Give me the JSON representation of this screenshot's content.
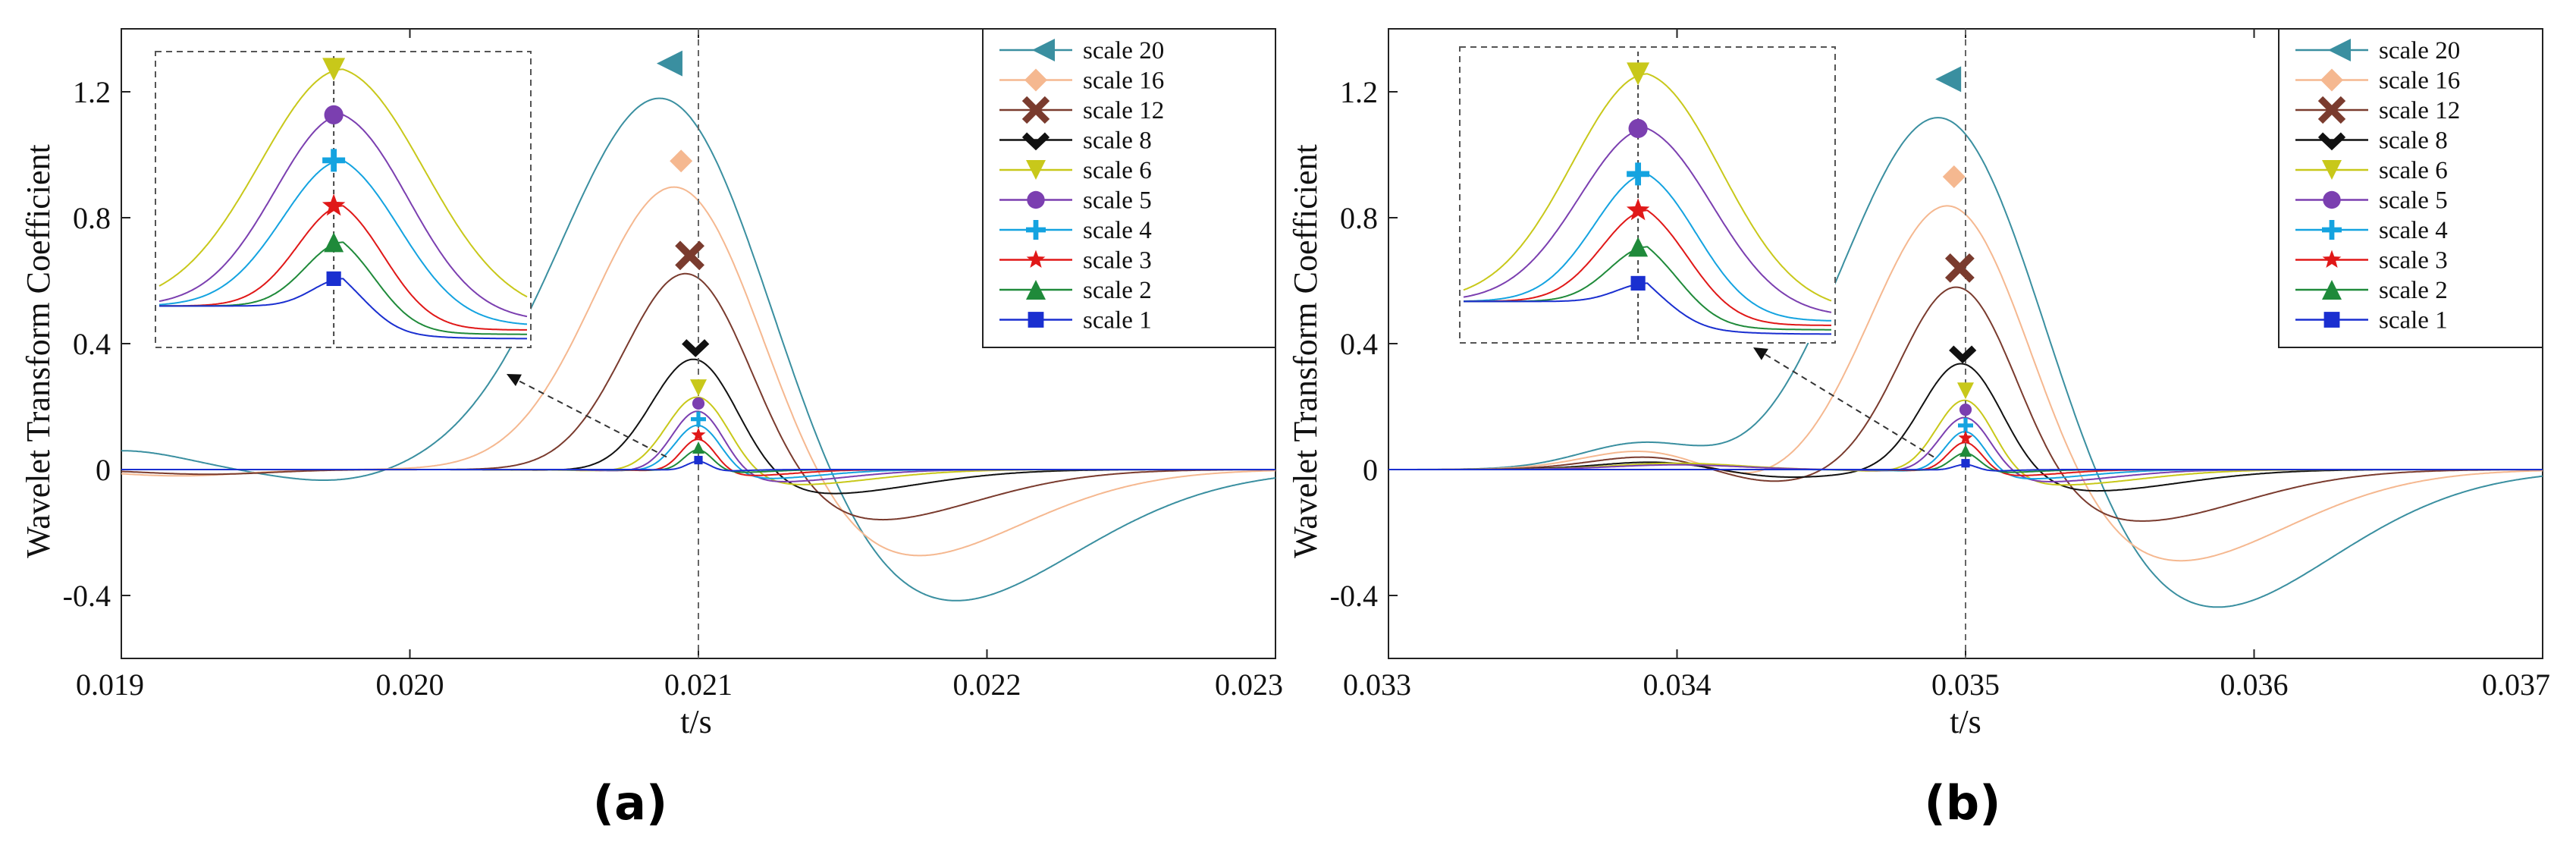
{
  "chart_data": [
    {
      "type": "line",
      "panel_label": "(a)",
      "xlabel": "t/s",
      "ylabel": "Wavelet Transform Coefficient",
      "xlim": [
        0.019,
        0.023
      ],
      "ylim": [
        -0.6,
        1.4
      ],
      "xticks": [
        0.019,
        0.02,
        0.021,
        0.022,
        0.023
      ],
      "xtick_labels": [
        "0.019",
        "0.020",
        "0.021",
        "0.022",
        "0.023"
      ],
      "yticks": [
        -0.4,
        0,
        0.4,
        0.8,
        1.2
      ],
      "ytick_labels": [
        "-0.4",
        "0",
        "0.4",
        "0.8",
        "1.2"
      ],
      "marker_line_x": 0.021,
      "legend_position": "top-right",
      "series": [
        {
          "name": "scale 20",
          "color": "#3a8fa0",
          "marker": "triangle-left",
          "peak_x": 0.0209,
          "peak_y": 1.29,
          "width": 0.00036,
          "neg_x": 0.02176,
          "neg_y": -0.46,
          "neg_width": 0.00052,
          "pre": [
            [
              0.019,
              0.06
            ],
            [
              0.01975,
              -0.04
            ]
          ]
        },
        {
          "name": "scale 16",
          "color": "#f5b890",
          "marker": "diamond",
          "peak_x": 0.02094,
          "peak_y": 0.98,
          "width": 0.00029,
          "neg_x": 0.02165,
          "neg_y": -0.3,
          "neg_width": 0.00045,
          "pre": [
            [
              0.0192,
              -0.02
            ]
          ]
        },
        {
          "name": "scale 12",
          "color": "#7a3b2e",
          "marker": "x",
          "peak_x": 0.02097,
          "peak_y": 0.68,
          "width": 0.00022,
          "neg_x": 0.02155,
          "neg_y": -0.17,
          "neg_width": 0.0004,
          "pre": [
            [
              0.0193,
              -0.015
            ]
          ]
        },
        {
          "name": "scale 8",
          "color": "#111111",
          "marker": "check",
          "peak_x": 0.02099,
          "peak_y": 0.39,
          "width": 0.00015,
          "neg_x": 0.0214,
          "neg_y": -0.08,
          "neg_width": 0.00035,
          "pre": []
        },
        {
          "name": "scale 6",
          "color": "#c8c81a",
          "marker": "triangle-down",
          "peak_x": 0.021,
          "peak_y": 0.26,
          "width": 0.00011,
          "neg_x": 0.0213,
          "neg_y": -0.05,
          "neg_width": 0.0003,
          "pre": []
        },
        {
          "name": "scale 5",
          "color": "#7b3fb0",
          "marker": "circle",
          "peak_x": 0.021,
          "peak_y": 0.21,
          "width": 9e-05,
          "neg_x": 0.02125,
          "neg_y": -0.04,
          "neg_width": 0.00026,
          "pre": []
        },
        {
          "name": "scale 4",
          "color": "#14a3e0",
          "marker": "plus",
          "peak_x": 0.021,
          "peak_y": 0.16,
          "width": 8e-05,
          "neg_x": 0.0212,
          "neg_y": -0.03,
          "neg_width": 0.00022,
          "pre": []
        },
        {
          "name": "scale 3",
          "color": "#e01818",
          "marker": "star",
          "peak_x": 0.021,
          "peak_y": 0.11,
          "width": 6e-05,
          "neg_x": 0.02115,
          "neg_y": -0.02,
          "neg_width": 0.00018,
          "pre": []
        },
        {
          "name": "scale 2",
          "color": "#1f8a3a",
          "marker": "triangle-up",
          "peak_x": 0.021,
          "peak_y": 0.07,
          "width": 5e-05,
          "neg_x": 0.0211,
          "neg_y": -0.01,
          "neg_width": 0.00014,
          "pre": []
        },
        {
          "name": "scale 1",
          "color": "#1a2fd0",
          "marker": "square",
          "peak_x": 0.021,
          "peak_y": 0.03,
          "width": 4e-05,
          "neg_x": 0.02106,
          "neg_y": -0.005,
          "neg_width": 0.0001,
          "pre": []
        }
      ]
    },
    {
      "type": "line",
      "panel_label": "(b)",
      "xlabel": "t/s",
      "ylabel": "Wavelet Transform Coefficient",
      "xlim": [
        0.033,
        0.037
      ],
      "ylim": [
        -0.6,
        1.4
      ],
      "xticks": [
        0.033,
        0.034,
        0.035,
        0.036,
        0.037
      ],
      "xtick_labels": [
        "0.033",
        "0.034",
        "0.035",
        "0.036",
        "0.037"
      ],
      "yticks": [
        -0.4,
        0,
        0.4,
        0.8,
        1.2
      ],
      "ytick_labels": [
        "-0.4",
        "0",
        "0.4",
        "0.8",
        "1.2"
      ],
      "marker_line_x": 0.035,
      "legend_position": "top-right",
      "series": [
        {
          "name": "scale 20",
          "color": "#3a8fa0",
          "marker": "triangle-left",
          "peak_x": 0.03494,
          "peak_y": 1.24,
          "width": 0.00034,
          "neg_x": 0.03575,
          "neg_y": -0.48,
          "neg_width": 0.0005,
          "pre": [
            [
              0.0339,
              0.09
            ],
            [
              0.03425,
              -0.05
            ]
          ]
        },
        {
          "name": "scale 16",
          "color": "#f5b890",
          "marker": "diamond",
          "peak_x": 0.03496,
          "peak_y": 0.93,
          "width": 0.00027,
          "neg_x": 0.03565,
          "neg_y": -0.31,
          "neg_width": 0.00045,
          "pre": [
            [
              0.03392,
              0.07
            ],
            [
              0.03428,
              -0.06
            ]
          ]
        },
        {
          "name": "scale 12",
          "color": "#7a3b2e",
          "marker": "x",
          "peak_x": 0.03498,
          "peak_y": 0.64,
          "width": 0.0002,
          "neg_x": 0.03555,
          "neg_y": -0.17,
          "neg_width": 0.0004,
          "pre": [
            [
              0.03395,
              0.05
            ],
            [
              0.0343,
              -0.05
            ]
          ]
        },
        {
          "name": "scale 8",
          "color": "#111111",
          "marker": "check",
          "peak_x": 0.03499,
          "peak_y": 0.37,
          "width": 0.00014,
          "neg_x": 0.0354,
          "neg_y": -0.07,
          "neg_width": 0.00034,
          "pre": [
            [
              0.03398,
              0.03
            ],
            [
              0.03432,
              -0.03
            ]
          ]
        },
        {
          "name": "scale 6",
          "color": "#c8c81a",
          "marker": "triangle-down",
          "peak_x": 0.035,
          "peak_y": 0.25,
          "width": 0.0001,
          "neg_x": 0.0353,
          "neg_y": -0.05,
          "neg_width": 0.0003,
          "pre": [
            [
              0.034,
              0.02
            ]
          ]
        },
        {
          "name": "scale 5",
          "color": "#7b3fb0",
          "marker": "circle",
          "peak_x": 0.035,
          "peak_y": 0.19,
          "width": 9e-05,
          "neg_x": 0.03525,
          "neg_y": -0.04,
          "neg_width": 0.00026,
          "pre": [
            [
              0.034,
              0.015
            ]
          ]
        },
        {
          "name": "scale 4",
          "color": "#14a3e0",
          "marker": "plus",
          "peak_x": 0.035,
          "peak_y": 0.14,
          "width": 7e-05,
          "neg_x": 0.0352,
          "neg_y": -0.03,
          "neg_width": 0.00022,
          "pre": []
        },
        {
          "name": "scale 3",
          "color": "#e01818",
          "marker": "star",
          "peak_x": 0.035,
          "peak_y": 0.1,
          "width": 6e-05,
          "neg_x": 0.03515,
          "neg_y": -0.02,
          "neg_width": 0.00018,
          "pre": []
        },
        {
          "name": "scale 2",
          "color": "#1f8a3a",
          "marker": "triangle-up",
          "peak_x": 0.035,
          "peak_y": 0.06,
          "width": 5e-05,
          "neg_x": 0.0351,
          "neg_y": -0.01,
          "neg_width": 0.00014,
          "pre": []
        },
        {
          "name": "scale 1",
          "color": "#1a2fd0",
          "marker": "square",
          "peak_x": 0.035,
          "peak_y": 0.02,
          "width": 4e-05,
          "neg_x": 0.03506,
          "neg_y": -0.005,
          "neg_width": 0.0001,
          "pre": []
        }
      ]
    }
  ]
}
